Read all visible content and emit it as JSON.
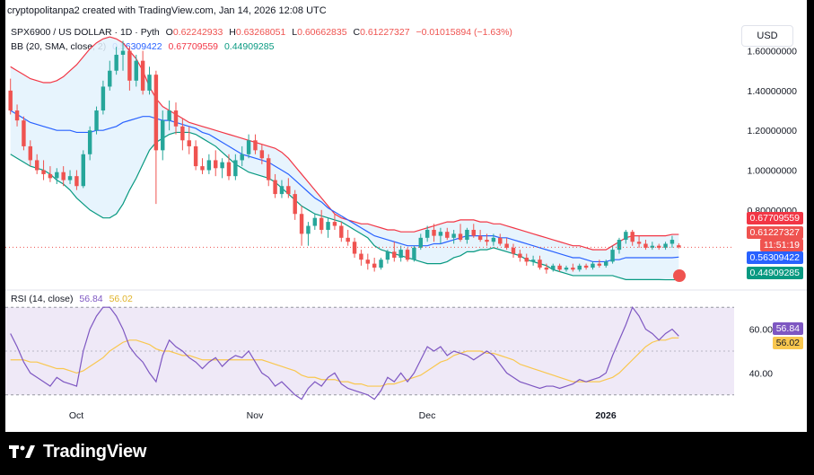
{
  "header": {
    "attribution": "cryptopolitanpa2 created with TradingView.com, Jan 14, 2026 12:08 UTC"
  },
  "legend": {
    "symbol": "SPX6900 / US DOLLAR · 1D · Pyth",
    "open_label": "O",
    "open": "0.62242933",
    "high_label": "H",
    "high": "0.63268051",
    "low_label": "L",
    "low": "0.60662835",
    "close_label": "C",
    "close": "0.61227327",
    "change": "−0.01015894 (−1.63%)",
    "bb_label": "BB (20, SMA, close, 2)",
    "bb_basis": "0.56309422",
    "bb_upper": "0.67709559",
    "bb_lower": "0.44909285",
    "rsi_label": "RSI (14, close)",
    "rsi_value": "56.84",
    "rsi_ma": "56.02"
  },
  "currency_button": "USD",
  "price_tags": {
    "upper": "0.67709559",
    "close": "0.61227327",
    "countdown": "11:51:19",
    "basis": "0.56309422",
    "lower": "0.44909285",
    "rsi": "56.84",
    "rsi_ma": "56.02"
  },
  "brand": {
    "name": "TradingView"
  },
  "colors": {
    "up": "#26a69a",
    "down": "#ef5350",
    "bb_basis": "#2962ff",
    "bb_upper": "#f23645",
    "bb_lower": "#089981",
    "bb_fill": "#e3f2fd",
    "rsi_line": "#7e57c2",
    "rsi_ma": "#f9c74f",
    "rsi_band": "#ede7f6"
  },
  "chart_data": [
    {
      "type": "candlestick",
      "title": "SPX6900 / US DOLLAR · 1D · Pyth",
      "x_ticks": [
        "Oct",
        "Nov",
        "Dec",
        "2026"
      ],
      "y_ticks": [
        "1.60000000",
        "1.40000000",
        "1.20000000",
        "1.00000000",
        "0.80000000"
      ],
      "ylim": [
        0.42,
        1.72
      ],
      "candles": [
        [
          1.4,
          1.46,
          1.28,
          1.3
        ],
        [
          1.3,
          1.33,
          1.22,
          1.25
        ],
        [
          1.25,
          1.27,
          1.1,
          1.12
        ],
        [
          1.12,
          1.15,
          1.02,
          1.05
        ],
        [
          1.05,
          1.08,
          0.98,
          1.0
        ],
        [
          1.0,
          1.05,
          0.95,
          0.98
        ],
        [
          0.98,
          1.02,
          0.94,
          0.96
        ],
        [
          0.96,
          1.01,
          0.93,
          0.99
        ],
        [
          0.99,
          1.02,
          0.92,
          0.95
        ],
        [
          0.95,
          1.0,
          0.93,
          0.97
        ],
        [
          0.97,
          1.0,
          0.9,
          0.92
        ],
        [
          0.92,
          1.1,
          0.91,
          1.08
        ],
        [
          1.08,
          1.22,
          1.05,
          1.2
        ],
        [
          1.2,
          1.32,
          1.18,
          1.3
        ],
        [
          1.3,
          1.45,
          1.28,
          1.42
        ],
        [
          1.42,
          1.55,
          1.4,
          1.5
        ],
        [
          1.5,
          1.62,
          1.48,
          1.58
        ],
        [
          1.58,
          1.65,
          1.5,
          1.6
        ],
        [
          1.6,
          1.62,
          1.4,
          1.45
        ],
        [
          1.45,
          1.58,
          1.42,
          1.55
        ],
        [
          1.55,
          1.6,
          1.38,
          1.4
        ],
        [
          1.4,
          1.52,
          1.38,
          1.48
        ],
        [
          1.48,
          1.5,
          0.83,
          1.1
        ],
        [
          1.1,
          1.3,
          1.05,
          1.25
        ],
        [
          1.25,
          1.35,
          1.2,
          1.3
        ],
        [
          1.3,
          1.34,
          1.18,
          1.22
        ],
        [
          1.22,
          1.26,
          1.1,
          1.15
        ],
        [
          1.15,
          1.22,
          1.08,
          1.12
        ],
        [
          1.12,
          1.15,
          1.0,
          1.02
        ],
        [
          1.02,
          1.06,
          0.98,
          1.0
        ],
        [
          1.0,
          1.08,
          0.98,
          1.05
        ],
        [
          1.05,
          1.1,
          0.97,
          1.01
        ],
        [
          1.01,
          1.06,
          0.96,
          1.04
        ],
        [
          1.04,
          1.08,
          0.95,
          0.97
        ],
        [
          0.97,
          1.08,
          0.95,
          1.05
        ],
        [
          1.05,
          1.12,
          1.02,
          1.08
        ],
        [
          1.08,
          1.18,
          1.06,
          1.15
        ],
        [
          1.15,
          1.18,
          1.08,
          1.1
        ],
        [
          1.1,
          1.13,
          1.03,
          1.06
        ],
        [
          1.06,
          1.08,
          0.92,
          0.95
        ],
        [
          0.95,
          0.98,
          0.86,
          0.88
        ],
        [
          0.88,
          0.95,
          0.86,
          0.92
        ],
        [
          0.92,
          0.96,
          0.86,
          0.88
        ],
        [
          0.88,
          0.9,
          0.75,
          0.78
        ],
        [
          0.78,
          0.82,
          0.62,
          0.68
        ],
        [
          0.68,
          0.74,
          0.62,
          0.72
        ],
        [
          0.72,
          0.78,
          0.7,
          0.76
        ],
        [
          0.76,
          0.8,
          0.68,
          0.7
        ],
        [
          0.7,
          0.76,
          0.66,
          0.74
        ],
        [
          0.74,
          0.78,
          0.7,
          0.72
        ],
        [
          0.72,
          0.74,
          0.64,
          0.66
        ],
        [
          0.66,
          0.7,
          0.62,
          0.64
        ],
        [
          0.64,
          0.66,
          0.56,
          0.58
        ],
        [
          0.58,
          0.6,
          0.52,
          0.55
        ],
        [
          0.55,
          0.58,
          0.5,
          0.53
        ],
        [
          0.53,
          0.56,
          0.49,
          0.51
        ],
        [
          0.51,
          0.56,
          0.5,
          0.55
        ],
        [
          0.55,
          0.6,
          0.53,
          0.59
        ],
        [
          0.59,
          0.64,
          0.54,
          0.56
        ],
        [
          0.56,
          0.62,
          0.54,
          0.6
        ],
        [
          0.6,
          0.61,
          0.54,
          0.55
        ],
        [
          0.55,
          0.62,
          0.54,
          0.61
        ],
        [
          0.61,
          0.68,
          0.6,
          0.66
        ],
        [
          0.66,
          0.72,
          0.64,
          0.7
        ],
        [
          0.7,
          0.73,
          0.64,
          0.67
        ],
        [
          0.67,
          0.71,
          0.63,
          0.69
        ],
        [
          0.69,
          0.71,
          0.65,
          0.66
        ],
        [
          0.66,
          0.7,
          0.63,
          0.68
        ],
        [
          0.68,
          0.73,
          0.64,
          0.65
        ],
        [
          0.65,
          0.71,
          0.63,
          0.7
        ],
        [
          0.7,
          0.73,
          0.66,
          0.67
        ],
        [
          0.67,
          0.7,
          0.64,
          0.65
        ],
        [
          0.65,
          0.68,
          0.62,
          0.64
        ],
        [
          0.64,
          0.68,
          0.62,
          0.66
        ],
        [
          0.66,
          0.68,
          0.62,
          0.63
        ],
        [
          0.63,
          0.66,
          0.6,
          0.61
        ],
        [
          0.61,
          0.63,
          0.56,
          0.58
        ],
        [
          0.58,
          0.6,
          0.54,
          0.56
        ],
        [
          0.56,
          0.58,
          0.52,
          0.54
        ],
        [
          0.54,
          0.57,
          0.52,
          0.55
        ],
        [
          0.55,
          0.57,
          0.5,
          0.51
        ],
        [
          0.51,
          0.53,
          0.48,
          0.5
        ],
        [
          0.5,
          0.53,
          0.49,
          0.52
        ],
        [
          0.52,
          0.53,
          0.49,
          0.5
        ],
        [
          0.5,
          0.52,
          0.49,
          0.51
        ],
        [
          0.51,
          0.53,
          0.49,
          0.5
        ],
        [
          0.5,
          0.53,
          0.49,
          0.52
        ],
        [
          0.52,
          0.53,
          0.5,
          0.51
        ],
        [
          0.51,
          0.54,
          0.5,
          0.53
        ],
        [
          0.53,
          0.55,
          0.51,
          0.52
        ],
        [
          0.52,
          0.55,
          0.51,
          0.54
        ],
        [
          0.54,
          0.62,
          0.53,
          0.6
        ],
        [
          0.6,
          0.66,
          0.58,
          0.65
        ],
        [
          0.65,
          0.7,
          0.63,
          0.69
        ],
        [
          0.69,
          0.7,
          0.62,
          0.64
        ],
        [
          0.64,
          0.67,
          0.61,
          0.63
        ],
        [
          0.63,
          0.65,
          0.6,
          0.61
        ],
        [
          0.61,
          0.64,
          0.6,
          0.62
        ],
        [
          0.62,
          0.63,
          0.6,
          0.61
        ],
        [
          0.61,
          0.64,
          0.6,
          0.63
        ],
        [
          0.63,
          0.67,
          0.61,
          0.65
        ],
        [
          0.62242933,
          0.63268051,
          0.60662835,
          0.61227327
        ]
      ],
      "bb_basis": [
        1.3,
        1.28,
        1.26,
        1.24,
        1.23,
        1.22,
        1.21,
        1.2,
        1.2,
        1.2,
        1.19,
        1.19,
        1.19,
        1.2,
        1.2,
        1.21,
        1.22,
        1.24,
        1.25,
        1.26,
        1.27,
        1.27,
        1.26,
        1.25,
        1.25,
        1.24,
        1.23,
        1.22,
        1.21,
        1.19,
        1.18,
        1.16,
        1.14,
        1.12,
        1.1,
        1.08,
        1.07,
        1.06,
        1.05,
        1.04,
        1.02,
        1.0,
        0.98,
        0.95,
        0.92,
        0.89,
        0.86,
        0.84,
        0.81,
        0.79,
        0.77,
        0.75,
        0.73,
        0.71,
        0.69,
        0.67,
        0.66,
        0.65,
        0.64,
        0.63,
        0.62,
        0.62,
        0.62,
        0.62,
        0.63,
        0.63,
        0.64,
        0.65,
        0.66,
        0.67,
        0.67,
        0.67,
        0.67,
        0.67,
        0.66,
        0.66,
        0.65,
        0.64,
        0.63,
        0.62,
        0.61,
        0.6,
        0.59,
        0.58,
        0.57,
        0.56,
        0.56,
        0.55,
        0.54,
        0.54,
        0.54,
        0.55,
        0.55,
        0.56,
        0.56,
        0.56,
        0.56,
        0.56,
        0.56,
        0.56,
        0.56,
        0.563
      ],
      "bb_upper": [
        1.52,
        1.5,
        1.48,
        1.46,
        1.45,
        1.44,
        1.44,
        1.45,
        1.47,
        1.5,
        1.53,
        1.57,
        1.61,
        1.64,
        1.66,
        1.67,
        1.66,
        1.64,
        1.6,
        1.56,
        1.5,
        1.42,
        1.36,
        1.32,
        1.3,
        1.28,
        1.26,
        1.24,
        1.23,
        1.22,
        1.21,
        1.2,
        1.19,
        1.18,
        1.17,
        1.16,
        1.15,
        1.14,
        1.13,
        1.12,
        1.11,
        1.09,
        1.06,
        1.02,
        0.98,
        0.94,
        0.9,
        0.86,
        0.82,
        0.78,
        0.76,
        0.75,
        0.74,
        0.73,
        0.73,
        0.72,
        0.71,
        0.7,
        0.7,
        0.69,
        0.69,
        0.69,
        0.7,
        0.71,
        0.72,
        0.73,
        0.74,
        0.74,
        0.75,
        0.75,
        0.75,
        0.74,
        0.74,
        0.73,
        0.73,
        0.72,
        0.71,
        0.7,
        0.69,
        0.68,
        0.67,
        0.66,
        0.65,
        0.64,
        0.63,
        0.62,
        0.62,
        0.61,
        0.6,
        0.6,
        0.6,
        0.62,
        0.64,
        0.66,
        0.67,
        0.67,
        0.67,
        0.67,
        0.67,
        0.67,
        0.677,
        0.677
      ],
      "bb_lower": [
        1.08,
        1.06,
        1.04,
        1.02,
        1.01,
        1.0,
        0.98,
        0.95,
        0.93,
        0.9,
        0.86,
        0.83,
        0.8,
        0.78,
        0.76,
        0.76,
        0.78,
        0.83,
        0.9,
        0.96,
        1.03,
        1.1,
        1.14,
        1.16,
        1.18,
        1.19,
        1.19,
        1.19,
        1.18,
        1.16,
        1.14,
        1.12,
        1.09,
        1.06,
        1.03,
        1.01,
        0.99,
        0.98,
        0.97,
        0.96,
        0.94,
        0.91,
        0.88,
        0.85,
        0.82,
        0.8,
        0.78,
        0.77,
        0.76,
        0.75,
        0.74,
        0.72,
        0.7,
        0.68,
        0.66,
        0.62,
        0.6,
        0.59,
        0.58,
        0.57,
        0.56,
        0.55,
        0.54,
        0.53,
        0.53,
        0.53,
        0.54,
        0.56,
        0.57,
        0.59,
        0.59,
        0.6,
        0.6,
        0.61,
        0.6,
        0.59,
        0.58,
        0.57,
        0.55,
        0.54,
        0.53,
        0.52,
        0.5,
        0.49,
        0.48,
        0.47,
        0.47,
        0.47,
        0.47,
        0.47,
        0.47,
        0.47,
        0.46,
        0.45,
        0.45,
        0.45,
        0.45,
        0.45,
        0.45,
        0.449,
        0.449,
        0.449
      ],
      "bb_labels": {
        "basis": "0.56309422",
        "upper": "0.67709559",
        "lower": "0.44909285"
      }
    },
    {
      "type": "line",
      "title": "RSI (14, close)",
      "y_ticks": [
        "60.00",
        "40.00"
      ],
      "ylim": [
        25,
        75
      ],
      "band": [
        30,
        70
      ],
      "series": [
        {
          "name": "RSI",
          "values": [
            58,
            52,
            45,
            40,
            38,
            36,
            34,
            38,
            36,
            35,
            34,
            50,
            60,
            66,
            70,
            70,
            66,
            60,
            52,
            48,
            45,
            40,
            36,
            48,
            55,
            52,
            50,
            47,
            45,
            42,
            45,
            47,
            43,
            46,
            48,
            47,
            50,
            45,
            40,
            38,
            34,
            36,
            33,
            30,
            28,
            33,
            36,
            34,
            38,
            40,
            35,
            33,
            32,
            31,
            30,
            28,
            32,
            38,
            36,
            40,
            36,
            40,
            46,
            52,
            50,
            52,
            48,
            50,
            49,
            48,
            46,
            48,
            50,
            48,
            44,
            40,
            38,
            36,
            35,
            34,
            33,
            34,
            34,
            33,
            34,
            35,
            37,
            36,
            37,
            38,
            40,
            48,
            55,
            62,
            70,
            66,
            60,
            58,
            55,
            58,
            60,
            56.84
          ]
        },
        {
          "name": "RSI-based MA",
          "values": [
            46,
            46,
            46,
            45,
            45,
            44,
            43,
            42,
            42,
            41,
            40,
            41,
            43,
            45,
            47,
            50,
            52,
            54,
            55,
            55,
            54,
            53,
            51,
            50,
            50,
            49,
            48,
            48,
            47,
            46,
            46,
            46,
            46,
            46,
            46,
            46,
            46,
            46,
            46,
            45,
            44,
            43,
            42,
            41,
            39,
            38,
            38,
            37,
            37,
            37,
            36,
            36,
            35,
            35,
            34,
            34,
            34,
            35,
            35,
            36,
            37,
            38,
            39,
            41,
            43,
            45,
            46,
            48,
            49,
            50,
            50,
            50,
            49,
            49,
            48,
            47,
            46,
            44,
            43,
            42,
            41,
            40,
            39,
            38,
            37,
            36,
            36,
            36,
            36,
            36,
            37,
            38,
            40,
            43,
            46,
            49,
            52,
            54,
            55,
            55,
            56,
            56.02
          ]
        }
      ]
    }
  ]
}
